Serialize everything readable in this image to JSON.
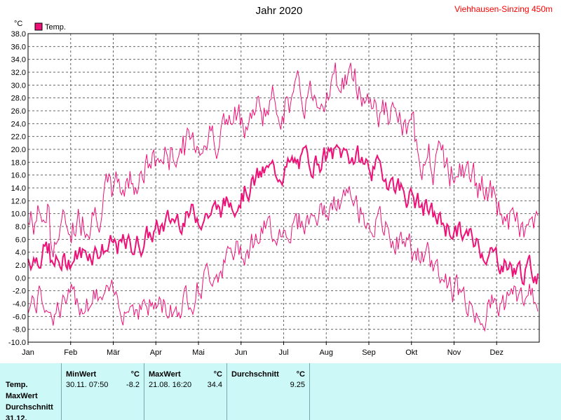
{
  "chart_data": {
    "type": "line",
    "title": "Jahr 2020",
    "station": "Viehhausen-Sinzing 450m",
    "ylabel": "°C",
    "ylim": [
      -10.0,
      38.0
    ],
    "yticks": [
      "38.0",
      "36.0",
      "34.0",
      "32.0",
      "30.0",
      "28.0",
      "26.0",
      "24.0",
      "22.0",
      "20.0",
      "18.0",
      "16.0",
      "14.0",
      "12.0",
      "10.0",
      "8.0",
      "6.0",
      "4.0",
      "2.0",
      "0.0",
      "-2.0",
      "-4.0",
      "-6.0",
      "-8.0",
      "-10.0"
    ],
    "months": [
      "Jan",
      "Feb",
      "Mär",
      "Apr",
      "Mai",
      "Jun",
      "Jul",
      "Aug",
      "Sep",
      "Okt",
      "Nov",
      "Dez"
    ],
    "legend": [
      "Temp."
    ],
    "series": [
      {
        "name": "Temp.",
        "color": "#ee1177",
        "monthly_mean": [
          1.5,
          4.5,
          5.0,
          9.5,
          10.5,
          16.0,
          18.0,
          19.5,
          15.5,
          9.5,
          5.5,
          1.0
        ],
        "monthly_max": [
          9.0,
          13.5,
          19.0,
          23.0,
          26.0,
          29.5,
          31.0,
          34.4,
          28.0,
          21.0,
          18.0,
          10.5
        ],
        "monthly_min": [
          -8.0,
          -6.0,
          -7.0,
          -7.5,
          -1.0,
          4.0,
          6.0,
          9.0,
          4.0,
          -1.0,
          -8.2,
          -6.0
        ]
      }
    ]
  },
  "stats": {
    "row_label": "Temp.",
    "extra_labels": [
      "MaxWert",
      "Durchschnitt",
      "31.12."
    ],
    "min_header": "MinWert",
    "min_unit": "°C",
    "min_date": "30.11.  07:50",
    "min_value": "-8.2",
    "max_header": "MaxWert",
    "max_unit": "°C",
    "max_date": "21.08.  16:20",
    "max_value": "34.4",
    "avg_header": "Durchschnitt",
    "avg_unit": "°C",
    "avg_value": "9.25"
  }
}
